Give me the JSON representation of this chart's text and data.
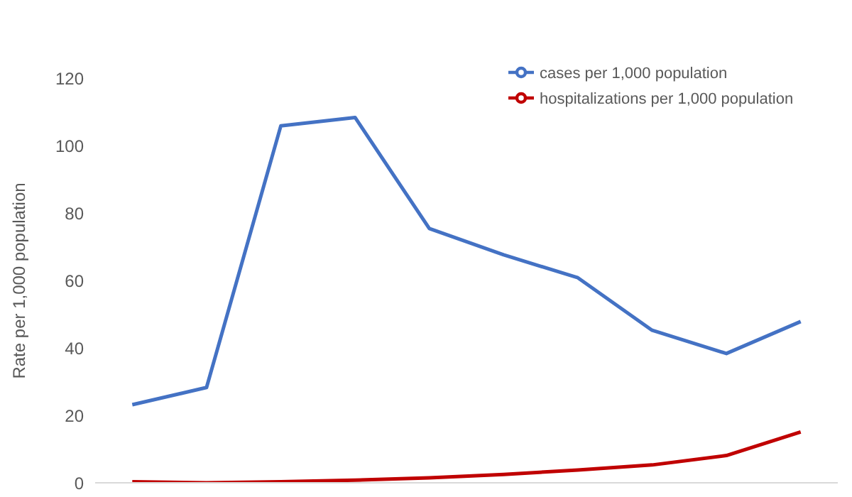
{
  "chart_data": {
    "type": "line",
    "ylabel": "Rate per 1,000 population",
    "categories": [
      null,
      null,
      null,
      null,
      null,
      null,
      null,
      null,
      null,
      null
    ],
    "series": [
      {
        "name": "cases per 1,000 population",
        "color": "#4472c4",
        "values": [
          23.2,
          28.3,
          106,
          108.5,
          75.5,
          67.7,
          60.9,
          45.3,
          38.4,
          47.9
        ]
      },
      {
        "name": "hospitalizations per 1,000 population",
        "color": "#c00000",
        "values": [
          0.3,
          0,
          0.3,
          0.8,
          1.5,
          2.5,
          3.8,
          5.3,
          8.1,
          15.1
        ]
      }
    ],
    "ylim": [
      0,
      120
    ],
    "yticks": [
      0,
      20,
      40,
      60,
      80,
      100,
      120
    ],
    "grid": false,
    "legend": "top right",
    "marker": "none",
    "line_style": "solid",
    "tick_labels": "y"
  }
}
